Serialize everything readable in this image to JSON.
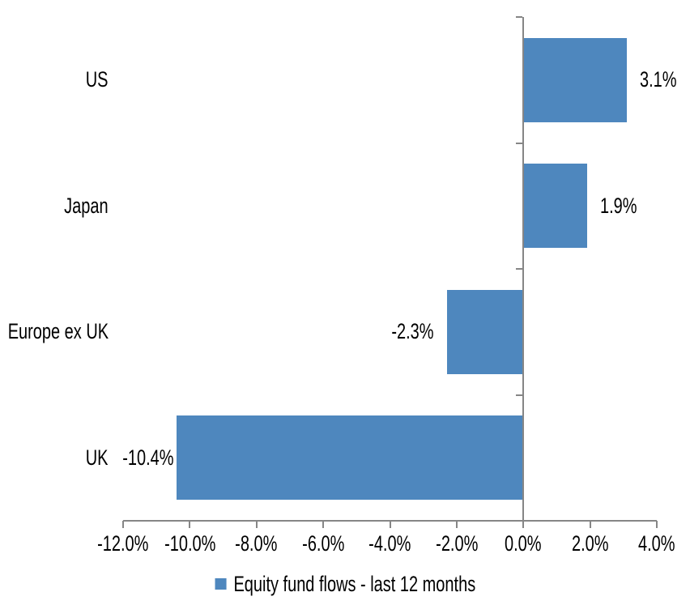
{
  "chart_data": {
    "type": "bar",
    "orientation": "horizontal",
    "categories": [
      "US",
      "Japan",
      "Europe ex UK",
      "UK"
    ],
    "values": [
      3.1,
      1.9,
      -2.3,
      -10.4
    ],
    "data_labels": [
      "3.1%",
      "1.9%",
      "-2.3%",
      "-10.4%"
    ],
    "x_tick_values": [
      -12,
      -10,
      -8,
      -6,
      -4,
      -2,
      0,
      2,
      4
    ],
    "x_tick_labels": [
      "-12.0%",
      "-10.0%",
      "-8.0%",
      "-6.0%",
      "-4.0%",
      "-2.0%",
      "0.0%",
      "2.0%",
      "4.0%"
    ],
    "xlim": [
      -12,
      4
    ],
    "grid": "off",
    "legend": "Equity fund flows - last 12 months",
    "legend_position": "bottom-center",
    "bar_color": "#4E87BE",
    "axis_color": "#868686",
    "text_color": "#000000",
    "background_color": "#FFFFFF"
  }
}
